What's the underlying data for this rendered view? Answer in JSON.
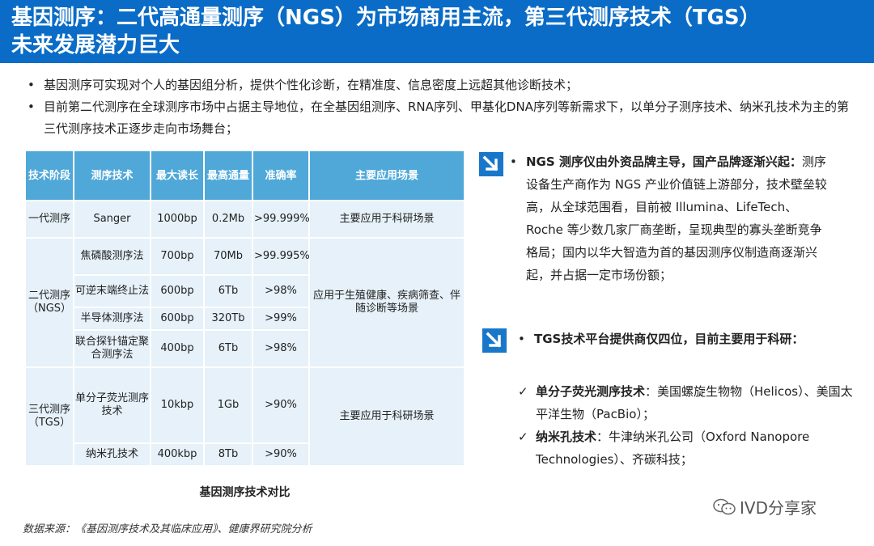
{
  "title": {
    "line1": "基因测序：二代高通量测序（NGS）为市场商用主流，第三代测序技术（TGS）",
    "line2": "未来发展潜力巨大"
  },
  "bullets": [
    "基因测序可实现对个人的基因组分析，提供个性化诊断，在精准度、信息密度上远超其他诊断技术；",
    "目前第二代测序在全球测序市场中占据主导地位，在全基因组测序、RNA序列、甲基化DNA序列等新需求下，以单分子测序技术、纳米孔技术为主的第三代测序技术正逐步走向市场舞台；"
  ],
  "table": {
    "headers": [
      "技术阶段",
      "测序技术",
      "最大读长",
      "最高通量",
      "准确率",
      "主要应用场景"
    ],
    "first_gen": {
      "stage": "一代测序",
      "tech": "Sanger",
      "read": "1000bp",
      "throughput": "0.2Mb",
      "accuracy": ">99.999%",
      "app": "主要应用于科研场景"
    },
    "second_gen": {
      "stage": "二代测序（NGS）",
      "app": "应用于生殖健康、疾病筛查、伴随诊断等场景",
      "rows": [
        {
          "tech": "焦磷酸测序法",
          "read": "700bp",
          "throughput": "70Mb",
          "accuracy": ">99.995%"
        },
        {
          "tech": "可逆末端终止法",
          "read": "600bp",
          "throughput": "6Tb",
          "accuracy": ">98%"
        },
        {
          "tech": "半导体测序法",
          "read": "600bp",
          "throughput": "320Tb",
          "accuracy": ">99%"
        },
        {
          "tech": "联合探针锚定聚合测序法",
          "read": "400bp",
          "throughput": "6Tb",
          "accuracy": ">98%"
        }
      ]
    },
    "third_gen": {
      "stage": "三代测序（TGS）",
      "app": "主要应用于科研场景",
      "rows": [
        {
          "tech": "单分子荧光测序技术",
          "read": "10kbp",
          "throughput": "1Gb",
          "accuracy": ">90%"
        },
        {
          "tech": "纳米孔技术",
          "read": "400kbp",
          "throughput": "8Tb",
          "accuracy": ">90%"
        }
      ]
    }
  },
  "caption": "基因测序技术对比",
  "source": "数据来源：《基因测序技术及其临床应用》、健康界研究院分析",
  "ngs_block": {
    "bold": "NGS 测序仪由外资品牌主导，国产品牌逐渐兴起：",
    "text": "测序设备生产商作为 NGS 产业价值链上游部分，技术壁垒较高，从全球范围看，目前被 Illumina、LifeTech、Roche 等少数几家厂商垄断，呈现典型的寡头垄断竞争格局；国内以华大智造为首的基因测序仪制造商逐渐兴起，并占据一定市场份额；"
  },
  "tgs_block": {
    "bold": "TGS技术平台提供商仅四位，目前主要用于科研："
  },
  "checks": [
    {
      "bold": "单分子荧光测序技术",
      "text": "：美国螺旋生物物（Helicos）、美国太平洋生物（PacBio）；"
    },
    {
      "bold": "纳米孔技术",
      "text": "：牛津纳米孔公司（Oxford Nanopore Technologies）、齐碳科技；"
    }
  ],
  "watermark": "IVD分享家",
  "colors": {
    "title_bg": "#0a6cc6",
    "header_bg": "#4fa8d8",
    "cell_bg": "#e6f1f9",
    "arrow_bg": "#1877c9"
  }
}
